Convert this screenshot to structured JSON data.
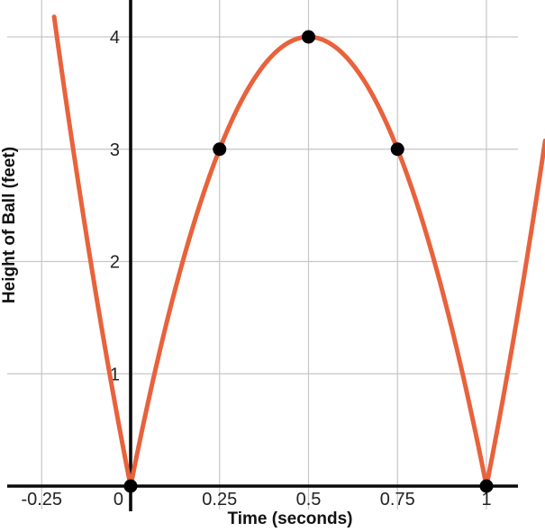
{
  "chart_data": {
    "type": "line",
    "title": "",
    "xlabel": "Time (seconds)",
    "ylabel": "Height of Ball (feet)",
    "grid": true,
    "xlim": [
      -0.37,
      1.17
    ],
    "ylim": [
      0,
      4.35
    ],
    "curve": {
      "expression": "h(t) = |16·t·(1 − t)|",
      "a": 16,
      "roots": [
        0,
        1
      ],
      "vertex": {
        "t": 0.5,
        "h": 4
      },
      "t_domain_shown": [
        -0.215,
        1.168
      ]
    },
    "marked_points": [
      {
        "t": 0,
        "h": 0
      },
      {
        "t": 0.25,
        "h": 3
      },
      {
        "t": 0.5,
        "h": 4
      },
      {
        "t": 0.75,
        "h": 3
      },
      {
        "t": 1,
        "h": 0
      }
    ],
    "x_ticks": [
      {
        "value": -0.25,
        "label": "-0.25"
      },
      {
        "value": 0,
        "label": "0"
      },
      {
        "value": 0.25,
        "label": "0.25"
      },
      {
        "value": 0.5,
        "label": "0.5"
      },
      {
        "value": 0.75,
        "label": "0.75"
      },
      {
        "value": 1,
        "label": "1"
      }
    ],
    "y_ticks": [
      {
        "value": 1,
        "label": "1"
      },
      {
        "value": 2,
        "label": "2"
      },
      {
        "value": 3,
        "label": "3"
      },
      {
        "value": 4,
        "label": "4"
      }
    ],
    "colors": {
      "curve": "#E8623C",
      "points": "#000000",
      "grid": "#C6C6C6",
      "axis": "#0a0a0a",
      "tick_text": "#222222",
      "label_text": "#111111"
    },
    "point_radius": 7.5,
    "curve_width": 5
  }
}
